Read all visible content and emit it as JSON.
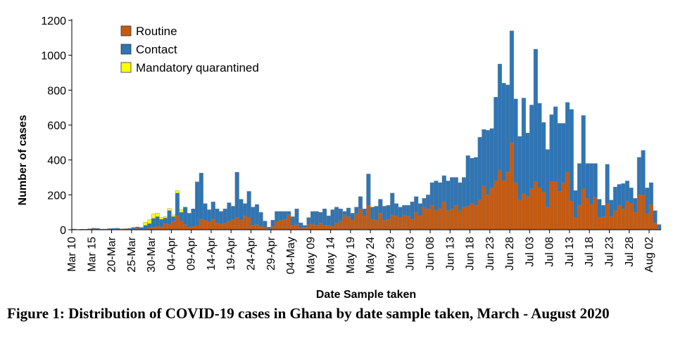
{
  "caption": "Figure 1: Distribution of COVID-19 cases in Ghana by date sample taken, March - August 2020",
  "chart_data": {
    "type": "bar",
    "stacked": true,
    "xlabel": "Date Sample taken",
    "ylabel": "Number of cases",
    "ylim": [
      0,
      1200
    ],
    "yticks": [
      0,
      200,
      400,
      600,
      800,
      1000,
      1200
    ],
    "grid": false,
    "legend_position": "top-left",
    "x_tick_labels": [
      "Mar 10",
      "Mar 15",
      "20-Mar",
      "25-Mar",
      "30-Mar",
      "04-Apr",
      "09-Apr",
      "14-Apr",
      "19-Apr",
      "24-Apr",
      "29-Apr",
      "04-May",
      "May 09",
      "May 14",
      "May 19",
      "May 24",
      "May 29",
      "Jun 03",
      "Jun 08",
      "Jun 13",
      "Jun 18",
      "Jun 23",
      "Jun 28",
      "Jul 03",
      "Jul 08",
      "Jul 13",
      "Jul 18",
      "Jul 23",
      "Jul 28",
      "Aug 02"
    ],
    "x_tick_every": 5,
    "colors": {
      "Routine": "#C55A11",
      "Contact": "#2E75B6",
      "Mandatory quarantined": "#FFFF00",
      "bar_edge": "#7f7f7f"
    },
    "series": [
      {
        "name": "Routine",
        "values": [
          2,
          1,
          2,
          1,
          3,
          5,
          3,
          2,
          2,
          4,
          3,
          5,
          2,
          1,
          3,
          5,
          8,
          3,
          5,
          10,
          15,
          20,
          18,
          35,
          30,
          50,
          80,
          50,
          30,
          15,
          20,
          25,
          60,
          55,
          45,
          60,
          40,
          35,
          40,
          50,
          60,
          70,
          55,
          80,
          70,
          25,
          30,
          20,
          15,
          5,
          20,
          45,
          55,
          60,
          85,
          25,
          30,
          10,
          15,
          30,
          35,
          25,
          40,
          25,
          25,
          20,
          40,
          50,
          85,
          75,
          55,
          90,
          120,
          80,
          140,
          60,
          55,
          95,
          55,
          60,
          85,
          80,
          70,
          85,
          80,
          60,
          100,
          80,
          130,
          120,
          140,
          110,
          120,
          160,
          110,
          120,
          140,
          110,
          130,
          135,
          150,
          140,
          170,
          250,
          200,
          240,
          280,
          340,
          280,
          330,
          500,
          270,
          170,
          205,
          190,
          235,
          275,
          240,
          215,
          130,
          275,
          275,
          220,
          270,
          330,
          165,
          70,
          140,
          235,
          180,
          145,
          185,
          70,
          75,
          150,
          75,
          110,
          140,
          120,
          165,
          150,
          100,
          200,
          200,
          90,
          145,
          40,
          5
        ]
      },
      {
        "name": "Contact",
        "values": [
          2,
          1,
          1,
          2,
          3,
          4,
          5,
          2,
          2,
          3,
          5,
          4,
          3,
          5,
          5,
          8,
          8,
          10,
          20,
          25,
          50,
          55,
          42,
          32,
          80,
          25,
          130,
          50,
          100,
          80,
          100,
          250,
          265,
          95,
          70,
          100,
          80,
          70,
          80,
          105,
          75,
          260,
          120,
          70,
          150,
          105,
          115,
          80,
          35,
          10,
          35,
          60,
          50,
          45,
          20,
          50,
          90,
          30,
          10,
          40,
          70,
          80,
          60,
          95,
          55,
          95,
          90,
          70,
          20,
          50,
          40,
          40,
          70,
          40,
          180,
          70,
          80,
          80,
          80,
          80,
          125,
          70,
          60,
          55,
          60,
          100,
          90,
          70,
          50,
          80,
          130,
          170,
          150,
          150,
          170,
          180,
          160,
          160,
          170,
          290,
          260,
          275,
          360,
          325,
          370,
          340,
          480,
          610,
          560,
          500,
          640,
          480,
          365,
          550,
          365,
          480,
          760,
          485,
          400,
          330,
          385,
          430,
          390,
          340,
          400,
          525,
          155,
          240,
          420,
          200,
          235,
          195,
          105,
          65,
          225,
          95,
          135,
          120,
          145,
          115,
          90,
          80,
          215,
          255,
          150,
          125,
          70,
          25
        ]
      },
      {
        "name": "Mandatory quarantined",
        "values": [
          0,
          0,
          0,
          0,
          0,
          0,
          0,
          0,
          0,
          0,
          0,
          0,
          0,
          0,
          0,
          0,
          0,
          0,
          18,
          22,
          25,
          20,
          10,
          8,
          12,
          10,
          15,
          15,
          0,
          0,
          0,
          0,
          0,
          0,
          0,
          0,
          0,
          0,
          0,
          0,
          0,
          0,
          0,
          0,
          0,
          0,
          0,
          0,
          0,
          0,
          0,
          0,
          0,
          0,
          0,
          0,
          0,
          0,
          0,
          0,
          0,
          0,
          0,
          0,
          0,
          0,
          0,
          0,
          0,
          0,
          0,
          0,
          0,
          0,
          0,
          0,
          0,
          0,
          0,
          0,
          0,
          0,
          0,
          0,
          0,
          0,
          0,
          0,
          0,
          0,
          0,
          0,
          0,
          0,
          0,
          0,
          0,
          0,
          0,
          0,
          0,
          0,
          0,
          0,
          0,
          0,
          0,
          0,
          0,
          0,
          0,
          0,
          0,
          0,
          0,
          0,
          0,
          0,
          0,
          0,
          0,
          0,
          0,
          0,
          0,
          0,
          0,
          0,
          0,
          0,
          0,
          0,
          0,
          0,
          0,
          0,
          0,
          0,
          0,
          0,
          0,
          0,
          0,
          0,
          0,
          0,
          0,
          0
        ]
      }
    ]
  }
}
